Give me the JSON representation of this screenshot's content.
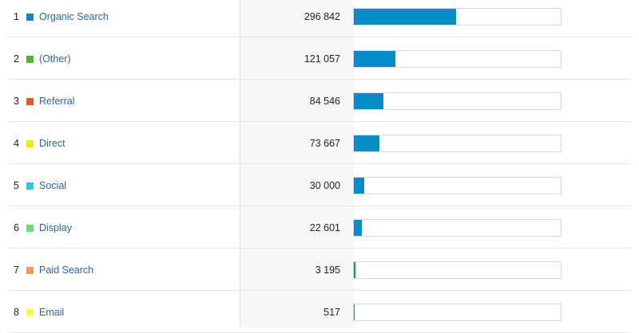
{
  "table": {
    "rows": [
      {
        "rank": "1",
        "label": "Organic Search",
        "value": "296 842",
        "swatch": "#058dc7",
        "share": 0.495
      },
      {
        "rank": "2",
        "label": "(Other)",
        "value": "121 057",
        "swatch": "#50b432",
        "share": 0.202
      },
      {
        "rank": "3",
        "label": "Referral",
        "value": "84 546",
        "swatch": "#ed561b",
        "share": 0.141
      },
      {
        "rank": "4",
        "label": "Direct",
        "value": "73 667",
        "swatch": "#edef00",
        "share": 0.123
      },
      {
        "rank": "5",
        "label": "Social",
        "value": "30 000",
        "swatch": "#24cbe5",
        "share": 0.05
      },
      {
        "rank": "6",
        "label": "Display",
        "value": "22 601",
        "swatch": "#64e572",
        "share": 0.038
      },
      {
        "rank": "7",
        "label": "Paid Search",
        "value": "3 195",
        "swatch": "#ff9655",
        "share": 0.006
      },
      {
        "rank": "8",
        "label": "Email",
        "value": "517",
        "swatch": "#fff263",
        "share": 0.002
      }
    ]
  }
}
